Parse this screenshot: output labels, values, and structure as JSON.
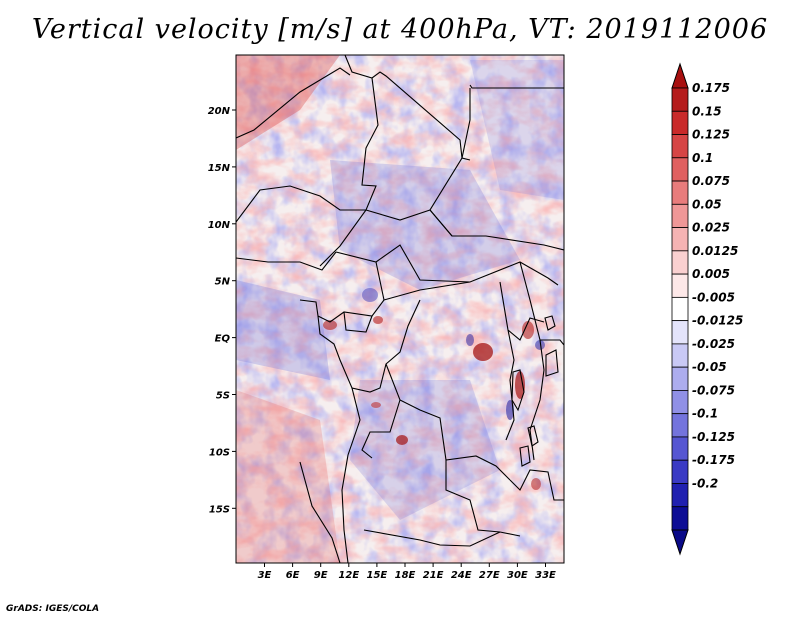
{
  "title": "Vertical velocity [m/s] at 400hPa, VT: 2019112006",
  "credit": "GrADS: IGES/COLA",
  "map": {
    "lat_labels": [
      "20N",
      "15N",
      "10N",
      "5N",
      "EQ",
      "5S",
      "10S",
      "15S"
    ],
    "lon_labels": [
      "3E",
      "6E",
      "9E",
      "12E",
      "15E",
      "18E",
      "21E",
      "24E",
      "27E",
      "30E",
      "33E"
    ]
  },
  "colorbar": {
    "labels": [
      "0.175",
      "0.15",
      "0.125",
      "0.1",
      "0.075",
      "0.05",
      "0.025",
      "0.0125",
      "0.005",
      "-0.005",
      "-0.0125",
      "-0.025",
      "-0.05",
      "-0.075",
      "-0.1",
      "-0.125",
      "-0.175",
      "-0.2"
    ],
    "colors": [
      "#b51c1c",
      "#c92a2a",
      "#d64545",
      "#e06060",
      "#e87c7c",
      "#ef9797",
      "#f5b3b3",
      "#fad0d0",
      "#fde8e8",
      "#ffffff",
      "#e4e4fb",
      "#c9c9f5",
      "#adadee",
      "#9090e6",
      "#7474dd",
      "#5656d2",
      "#3a3ac4",
      "#2020b0",
      "#0d0d95"
    ],
    "top_color": "#a81010",
    "bottom_color": "#0a0a88"
  }
}
